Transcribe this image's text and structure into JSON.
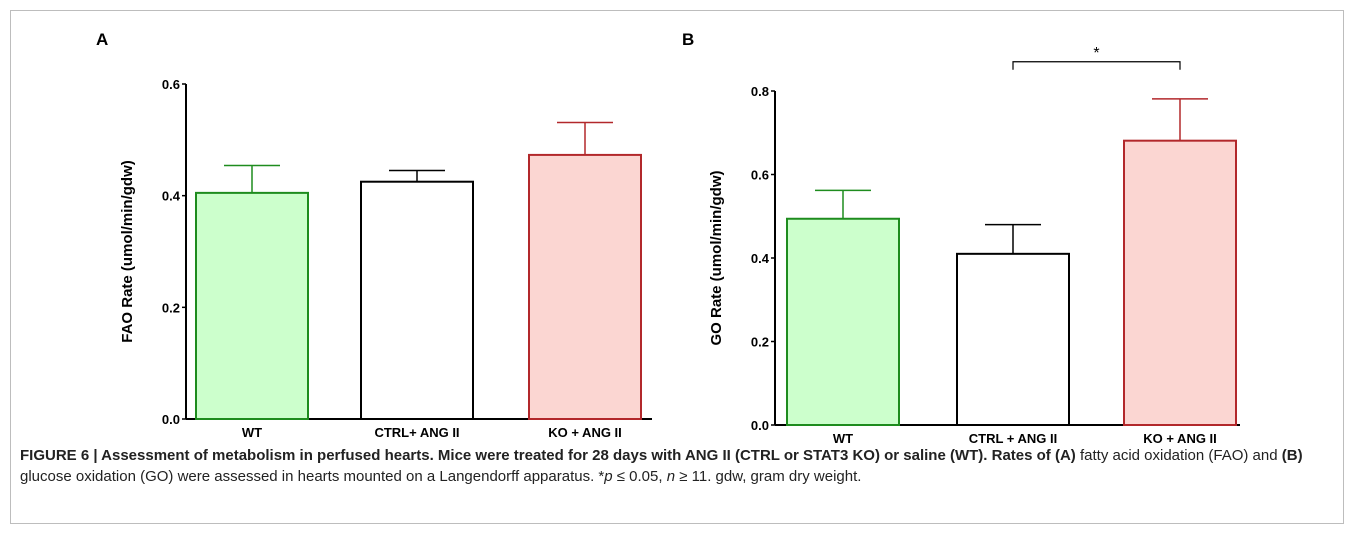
{
  "chart_data": [
    {
      "panel": "A",
      "type": "bar",
      "title": "",
      "xlabel": "",
      "ylabel": "FAO Rate (umol/min/gdw)",
      "categories": [
        "WT",
        "CTRL+ ANG II",
        "KO + ANG II"
      ],
      "values": [
        0.405,
        0.425,
        0.473
      ],
      "errors": [
        0.049,
        0.02,
        0.058
      ],
      "ylim": [
        0,
        0.6
      ],
      "yticks": [
        "0.0",
        "0.2",
        "0.4",
        "0.6"
      ],
      "ytick_values": [
        0,
        0.2,
        0.4,
        0.6
      ],
      "bar_colors": [
        {
          "fill": "#ccffcc",
          "stroke": "#1e8c1e"
        },
        {
          "fill": "#ffffff",
          "stroke": "#000000"
        },
        {
          "fill": "#fbd6d2",
          "stroke": "#b2282b"
        }
      ],
      "grid": false
    },
    {
      "panel": "B",
      "type": "bar",
      "title": "",
      "xlabel": "",
      "ylabel": "GO Rate (umol/min/gdw)",
      "categories": [
        "WT",
        "CTRL + ANG II",
        "KO + ANG II"
      ],
      "values": [
        0.494,
        0.41,
        0.681
      ],
      "errors": [
        0.068,
        0.07,
        0.1
      ],
      "ylim": [
        0,
        0.8
      ],
      "yticks": [
        "0.0",
        "0.2",
        "0.4",
        "0.6",
        "0.8"
      ],
      "ytick_values": [
        0,
        0.2,
        0.4,
        0.6,
        0.8
      ],
      "bar_colors": [
        {
          "fill": "#ccffcc",
          "stroke": "#1e8c1e"
        },
        {
          "fill": "#ffffff",
          "stroke": "#000000"
        },
        {
          "fill": "#fbd6d2",
          "stroke": "#b2282b"
        }
      ],
      "significance": {
        "from": 1,
        "to": 2,
        "label": "*",
        "level": 0.87
      },
      "grid": false
    }
  ],
  "caption": {
    "lead": "FIGURE 6 | Assessment of metabolism in perfused hearts. Mice were treated for 28 days with ANG II (CTRL or STAT3 KO) or saline (WT). Rates of",
    "ref_a": "(A)",
    "text1": "fatty acid oxidation (FAO) and",
    "ref_b": "(B)",
    "text2": "glucose oxidation (GO) were assessed in hearts mounted on a Langendorff apparatus. *",
    "p": "p",
    "text3": "≤ 0.05,",
    "n": "n",
    "text4": "≥ 11. gdw, gram dry weight."
  }
}
